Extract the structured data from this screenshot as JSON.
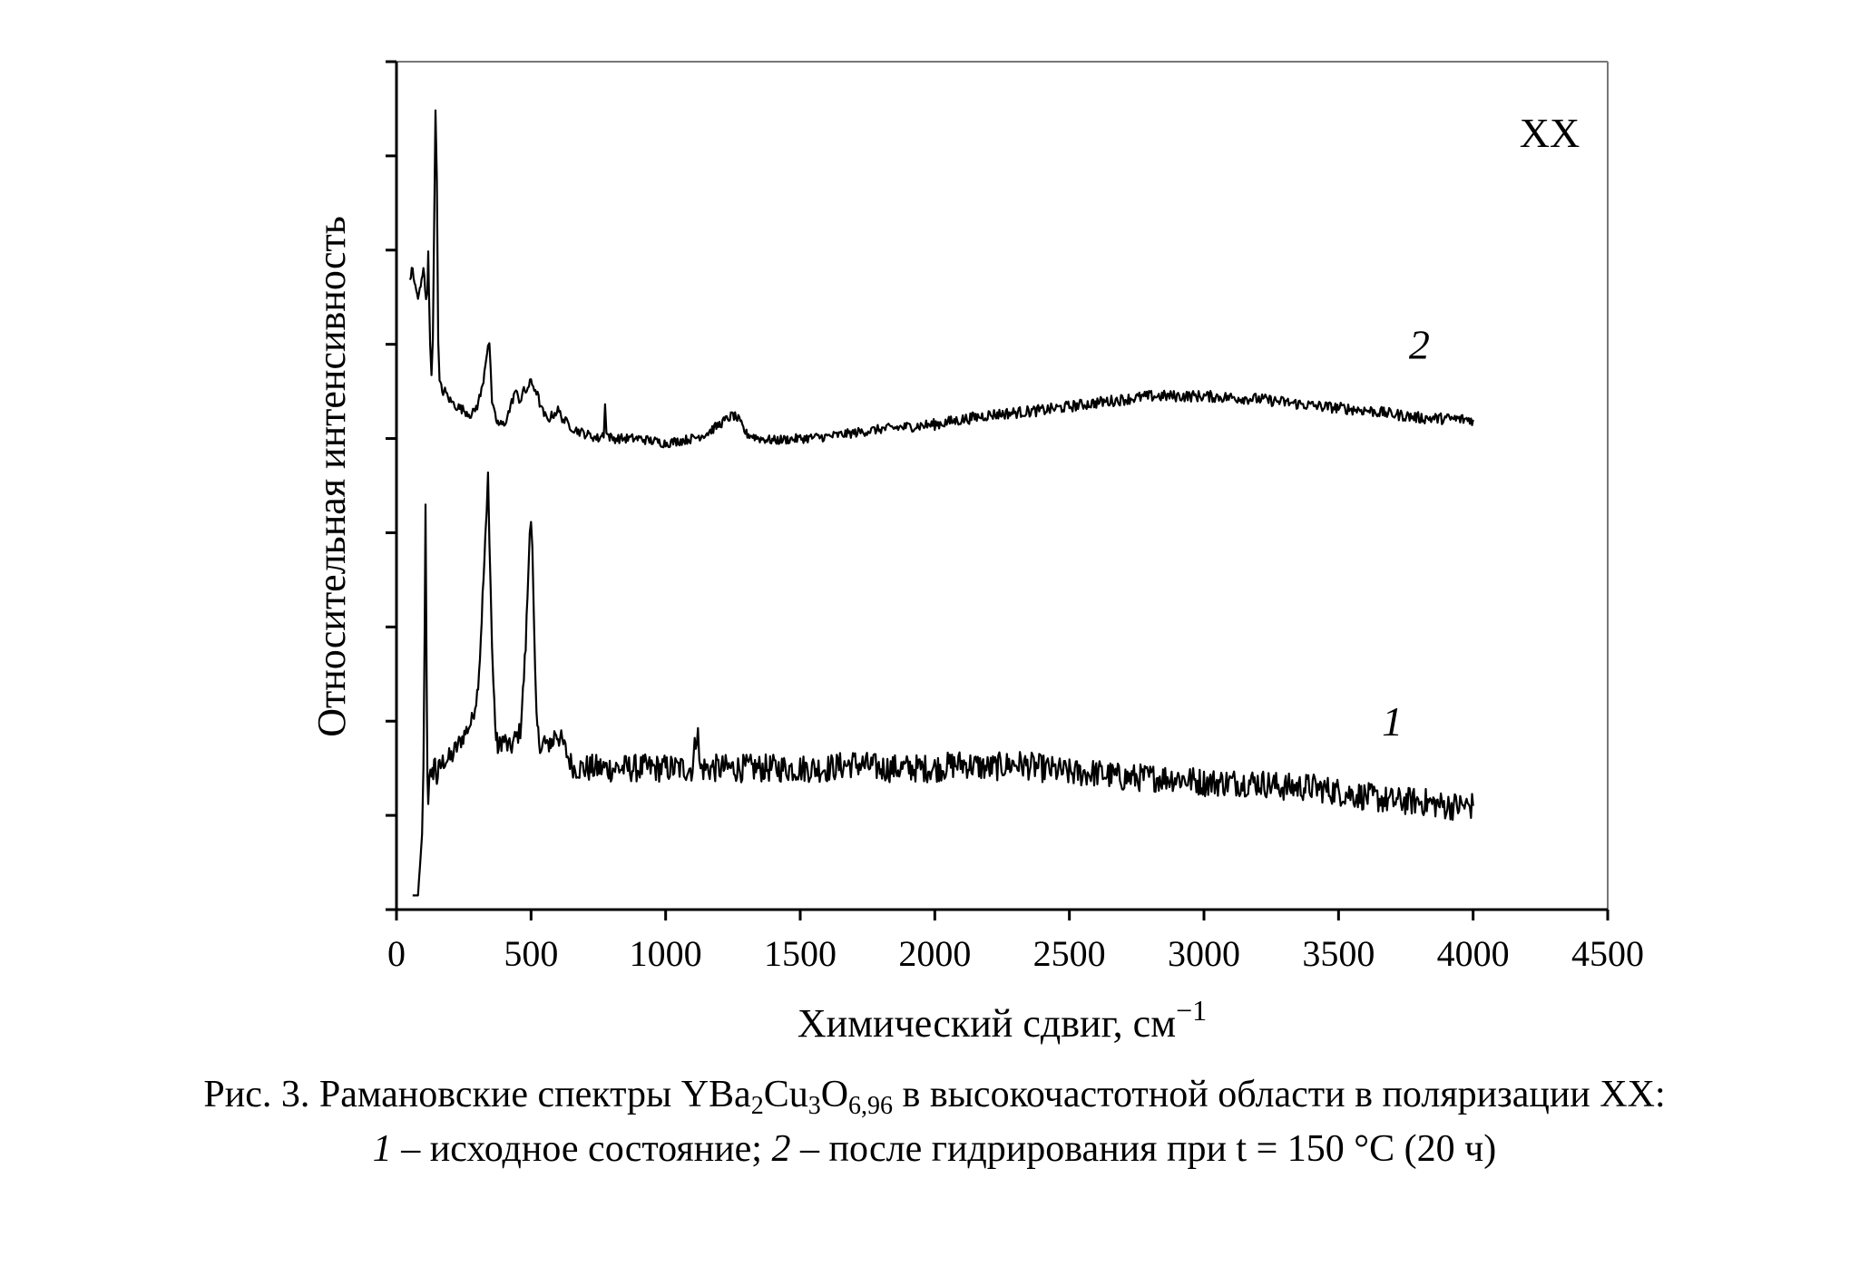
{
  "chart_data": {
    "type": "line",
    "title": "",
    "xlabel": "Химический сдвиг, см",
    "xlabel_sup": "−1",
    "ylabel": "Относительная интенсивность",
    "xlim": [
      0,
      4500
    ],
    "x_ticks": [
      "0",
      "500",
      "1000",
      "1500",
      "2000",
      "2500",
      "3000",
      "3500",
      "4000",
      "4500"
    ],
    "ylim": [
      0,
      9
    ],
    "y_tick_count": 9,
    "y_tick_labels": [],
    "grid": false,
    "legend": "none",
    "corner_label": "XX",
    "series": [
      {
        "name": "1",
        "label_at": [
          3700,
          1.85
        ],
        "x": [
          60,
          80,
          95,
          100,
          105,
          108,
          112,
          115,
          118,
          122,
          130,
          140,
          150,
          160,
          180,
          200,
          220,
          240,
          260,
          280,
          300,
          310,
          320,
          330,
          335,
          340,
          345,
          350,
          355,
          360,
          370,
          380,
          390,
          400,
          420,
          440,
          460,
          470,
          480,
          490,
          495,
          500,
          505,
          510,
          515,
          520,
          530,
          540,
          550,
          560,
          570,
          580,
          590,
          600,
          620,
          640,
          660,
          700,
          750,
          800,
          900,
          1000,
          1100,
          1120,
          1125,
          1130,
          1140,
          1200,
          1250,
          1300,
          1400,
          1500,
          1600,
          1700,
          1800,
          1900,
          2000,
          2100,
          2200,
          2300,
          2400,
          2500,
          2600,
          2700,
          2800,
          2900,
          3000,
          3100,
          3200,
          3300,
          3400,
          3500,
          3600,
          3700,
          3800,
          3900,
          4000
        ],
        "y": [
          0.15,
          0.15,
          0.8,
          1.5,
          3.0,
          4.3,
          2.5,
          1.4,
          1.2,
          1.5,
          1.3,
          1.6,
          1.4,
          1.5,
          1.6,
          1.6,
          1.7,
          1.8,
          1.9,
          2.0,
          2.3,
          2.7,
          3.3,
          3.9,
          4.2,
          4.6,
          4.0,
          3.4,
          2.8,
          2.4,
          1.8,
          1.7,
          1.8,
          1.8,
          1.7,
          1.8,
          1.9,
          2.3,
          2.8,
          3.6,
          4.1,
          4.15,
          3.8,
          3.1,
          2.5,
          2.0,
          1.8,
          1.7,
          1.8,
          1.7,
          1.8,
          1.75,
          1.9,
          1.85,
          1.75,
          1.6,
          1.5,
          1.5,
          1.5,
          1.5,
          1.5,
          1.5,
          1.5,
          2.0,
          1.5,
          1.5,
          1.5,
          1.5,
          1.5,
          1.5,
          1.5,
          1.5,
          1.5,
          1.55,
          1.5,
          1.5,
          1.5,
          1.55,
          1.5,
          1.55,
          1.5,
          1.45,
          1.45,
          1.4,
          1.4,
          1.4,
          1.35,
          1.35,
          1.35,
          1.3,
          1.3,
          1.25,
          1.2,
          1.15,
          1.15,
          1.1,
          1.1
        ],
        "noise": [
          0,
          0,
          0,
          0,
          0,
          0,
          0,
          0.1,
          0.15,
          0.15,
          0.15,
          0.15,
          0.15,
          0.12,
          0.12,
          0.12,
          0.12,
          0.1,
          0.1,
          0.1,
          0.1,
          0.1,
          0.1,
          0.1,
          0.1,
          0.1,
          0.1,
          0.1,
          0.1,
          0.1,
          0.12,
          0.12,
          0.12,
          0.12,
          0.12,
          0.12,
          0.1,
          0.1,
          0.1,
          0.1,
          0.1,
          0.1,
          0.1,
          0.1,
          0.1,
          0.1,
          0.1,
          0.12,
          0.12,
          0.12,
          0.12,
          0.12,
          0.12,
          0.12,
          0.12,
          0.12,
          0.12,
          0.15,
          0.15,
          0.15,
          0.15,
          0.15,
          0.15,
          0.15,
          0.15,
          0.15,
          0.15,
          0.15,
          0.15,
          0.15,
          0.15,
          0.15,
          0.15,
          0.15,
          0.15,
          0.15,
          0.15,
          0.15,
          0.15,
          0.15,
          0.15,
          0.15,
          0.15,
          0.15,
          0.15,
          0.15,
          0.15,
          0.15,
          0.15,
          0.15,
          0.15,
          0.15,
          0.15,
          0.15,
          0.15,
          0.15,
          0.15
        ]
      },
      {
        "name": "2",
        "label_at": [
          3800,
          5.85
        ],
        "x": [
          50,
          60,
          70,
          80,
          90,
          100,
          110,
          115,
          118,
          120,
          125,
          130,
          135,
          140,
          145,
          150,
          155,
          160,
          170,
          180,
          200,
          220,
          250,
          280,
          300,
          320,
          330,
          340,
          345,
          350,
          355,
          360,
          370,
          380,
          400,
          420,
          440,
          460,
          470,
          480,
          500,
          520,
          540,
          560,
          580,
          600,
          620,
          640,
          660,
          700,
          750,
          770,
          775,
          780,
          800,
          900,
          1000,
          1100,
          1150,
          1200,
          1250,
          1270,
          1300,
          1350,
          1400,
          1500,
          1600,
          1800,
          2000,
          2200,
          2400,
          2600,
          2800,
          3000,
          3200,
          3400,
          3600,
          3800,
          4000
        ],
        "y": [
          6.7,
          6.8,
          6.6,
          6.5,
          6.6,
          6.8,
          6.5,
          6.6,
          7.0,
          6.6,
          6.0,
          5.7,
          6.1,
          7.2,
          8.5,
          7.8,
          6.0,
          5.6,
          5.5,
          5.5,
          5.4,
          5.35,
          5.3,
          5.25,
          5.35,
          5.55,
          5.8,
          6.0,
          6.0,
          5.7,
          5.4,
          5.3,
          5.2,
          5.15,
          5.15,
          5.3,
          5.5,
          5.4,
          5.5,
          5.5,
          5.6,
          5.5,
          5.3,
          5.2,
          5.25,
          5.3,
          5.2,
          5.15,
          5.1,
          5.05,
          5.0,
          5.05,
          5.4,
          5.05,
          5.0,
          5.0,
          4.95,
          5.0,
          5.05,
          5.15,
          5.25,
          5.2,
          5.05,
          5.0,
          4.98,
          5.0,
          5.02,
          5.1,
          5.15,
          5.25,
          5.3,
          5.38,
          5.45,
          5.45,
          5.42,
          5.35,
          5.3,
          5.22,
          5.2
        ],
        "noise": [
          0.05,
          0.05,
          0.05,
          0.05,
          0.05,
          0.05,
          0.05,
          0.05,
          0.05,
          0.05,
          0.05,
          0.05,
          0.05,
          0.05,
          0.05,
          0.05,
          0.05,
          0.05,
          0.05,
          0.05,
          0.05,
          0.05,
          0.05,
          0.05,
          0.05,
          0.05,
          0.05,
          0.05,
          0.05,
          0.05,
          0.05,
          0.05,
          0.05,
          0.05,
          0.05,
          0.05,
          0.05,
          0.05,
          0.05,
          0.05,
          0.05,
          0.05,
          0.05,
          0.05,
          0.05,
          0.05,
          0.05,
          0.05,
          0.05,
          0.05,
          0.05,
          0.05,
          0.05,
          0.05,
          0.05,
          0.05,
          0.05,
          0.05,
          0.05,
          0.05,
          0.05,
          0.05,
          0.05,
          0.05,
          0.05,
          0.05,
          0.05,
          0.05,
          0.06,
          0.06,
          0.06,
          0.06,
          0.06,
          0.06,
          0.06,
          0.06,
          0.06,
          0.06,
          0.06
        ]
      }
    ]
  },
  "caption": {
    "line1_prefix": "Рис. 3. Рамановские спектры YBa",
    "sub1": "2",
    "mid1": "Cu",
    "sub2": "3",
    "mid2": "O",
    "sub3": "6,96",
    "line1_suffix": " в высокочастотной области в поляризации XX:",
    "line2_num1": "1",
    "line2_text1": " – исходное состояние; ",
    "line2_num2": "2",
    "line2_text2": " – после гидрирования при t = 150 °C (20 ч)"
  }
}
